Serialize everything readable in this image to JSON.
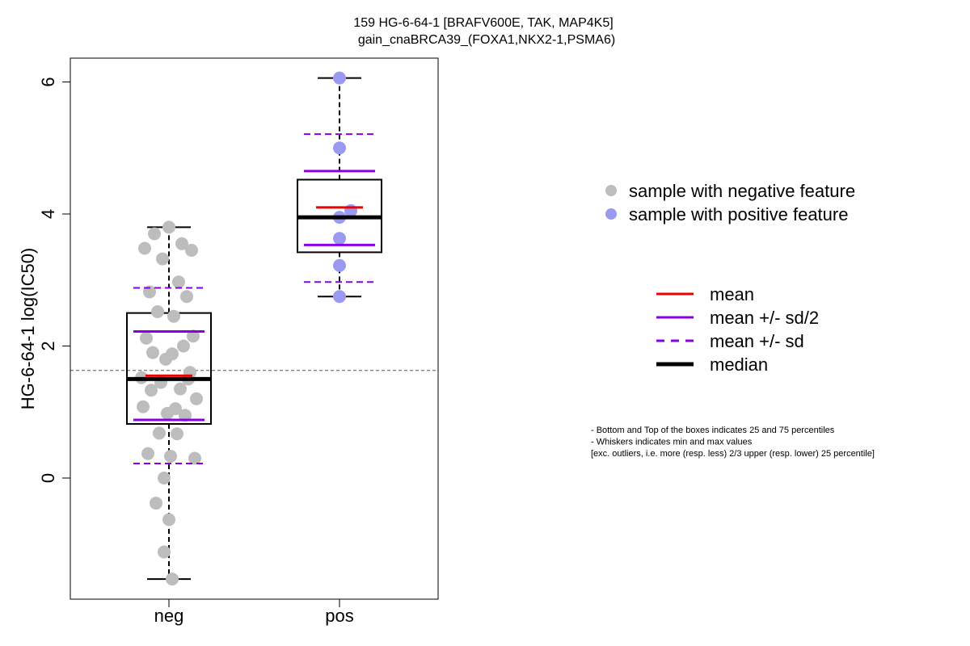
{
  "chart_data": {
    "type": "box",
    "title_line1": "159 HG-6-64-1 [BRAFV600E, TAK, MAP4K5]",
    "title_line2": "gain_cnaBRCA39_(FOXA1,NKX2-1,PSMA6)",
    "ylabel": "HG-6-64-1 log(IC50)",
    "xlabel": "",
    "ylim": [
      -1.8,
      6.35
    ],
    "y_ticks": [
      "0",
      "2",
      "4",
      "6"
    ],
    "y_tick_values": [
      0,
      2,
      4,
      6
    ],
    "reference_line": 1.63,
    "categories": [
      "neg",
      "pos"
    ],
    "groups": [
      {
        "label": "neg",
        "color": "#bdbdbd",
        "min": -1.53,
        "q1": 0.82,
        "median": 1.5,
        "q3": 2.5,
        "max": 3.8,
        "mean": 1.55,
        "mean_minus_half_sd": 0.88,
        "mean_plus_half_sd": 2.22,
        "mean_minus_sd": 0.22,
        "mean_plus_sd": 2.88,
        "points": [
          3.8,
          3.7,
          3.55,
          3.48,
          3.45,
          3.32,
          2.97,
          2.82,
          2.75,
          2.52,
          2.45,
          2.15,
          2.12,
          2.0,
          1.9,
          1.88,
          1.8,
          1.6,
          1.52,
          1.5,
          1.45,
          1.35,
          1.33,
          1.2,
          1.08,
          1.05,
          0.98,
          0.95,
          0.68,
          0.67,
          0.37,
          0.33,
          0.3,
          0.0,
          -0.38,
          -0.63,
          -1.12,
          -1.53
        ]
      },
      {
        "label": "pos",
        "color": "#9a9af0",
        "min": 2.75,
        "q1": 3.42,
        "median": 3.95,
        "q3": 4.52,
        "max": 6.06,
        "mean": 4.1,
        "mean_minus_half_sd": 3.53,
        "mean_plus_half_sd": 4.65,
        "mean_minus_sd": 2.97,
        "mean_plus_sd": 5.21,
        "points": [
          6.06,
          5.0,
          4.05,
          3.95,
          3.63,
          3.22,
          2.75
        ]
      }
    ],
    "legend_points": [
      {
        "label": "sample with negative feature",
        "color": "#bdbdbd"
      },
      {
        "label": "sample with positive feature",
        "color": "#9a9af0"
      }
    ],
    "legend_lines": [
      {
        "label": "mean",
        "color": "#ee0000",
        "style": "solid"
      },
      {
        "label": "mean +/- sd/2",
        "color": "#8a00e6",
        "style": "solid"
      },
      {
        "label": "mean +/- sd",
        "color": "#8a00e6",
        "style": "dashed"
      },
      {
        "label": "median",
        "color": "#000000",
        "style": "thick"
      }
    ],
    "notes": [
      "- Bottom and Top of the boxes indicates 25 and 75 percentiles",
      "- Whiskers indicates min and max values",
      "[exc. outliers, i.e. more (resp. less) 2/3 upper (resp. lower) 25 percentile]"
    ]
  }
}
